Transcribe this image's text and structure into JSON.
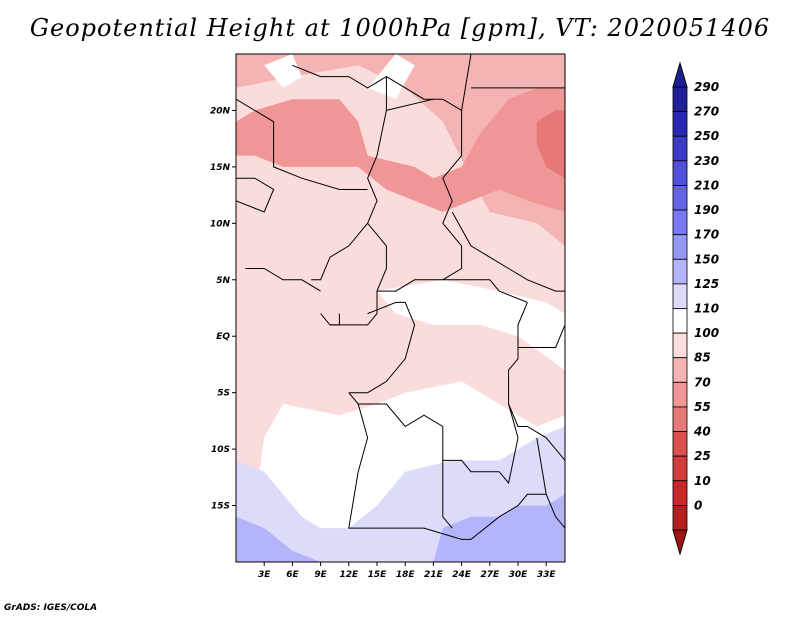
{
  "title": "Geopotential Height at 1000hPa [gpm], VT: 2020051406",
  "credit": "GrADS: IGES/COLA",
  "map": {
    "lat_range": [
      -20,
      25
    ],
    "lon_range": [
      0,
      35
    ],
    "lat_ticks": [
      {
        "value": 20,
        "label": "20N"
      },
      {
        "value": 15,
        "label": "15N"
      },
      {
        "value": 10,
        "label": "10N"
      },
      {
        "value": 5,
        "label": "5N"
      },
      {
        "value": 0,
        "label": "EQ"
      },
      {
        "value": -5,
        "label": "5S"
      },
      {
        "value": -10,
        "label": "10S"
      },
      {
        "value": -15,
        "label": "15S"
      }
    ],
    "lon_ticks": [
      {
        "value": 3,
        "label": "3E"
      },
      {
        "value": 6,
        "label": "6E"
      },
      {
        "value": 9,
        "label": "9E"
      },
      {
        "value": 12,
        "label": "12E"
      },
      {
        "value": 15,
        "label": "15E"
      },
      {
        "value": 18,
        "label": "18E"
      },
      {
        "value": 21,
        "label": "21E"
      },
      {
        "value": 24,
        "label": "24E"
      },
      {
        "value": 27,
        "label": "27E"
      },
      {
        "value": 30,
        "label": "30E"
      },
      {
        "value": 33,
        "label": "33E"
      }
    ]
  },
  "colorbar": {
    "levels": [
      {
        "label": "290",
        "color": "#1e1e96"
      },
      {
        "label": "270",
        "color": "#2828b4"
      },
      {
        "label": "250",
        "color": "#3c3cc8"
      },
      {
        "label": "230",
        "color": "#5050dc"
      },
      {
        "label": "210",
        "color": "#6464e6"
      },
      {
        "label": "190",
        "color": "#7878f0"
      },
      {
        "label": "170",
        "color": "#9696f5"
      },
      {
        "label": "150",
        "color": "#b4b4fa"
      },
      {
        "label": "125",
        "color": "#dcdcfa"
      },
      {
        "label": "110",
        "color": "#ffffff"
      },
      {
        "label": "100",
        "color": "#fadcdc"
      },
      {
        "label": "85",
        "color": "#f5b4b4"
      },
      {
        "label": "70",
        "color": "#f09696"
      },
      {
        "label": "55",
        "color": "#e67878"
      },
      {
        "label": "40",
        "color": "#dc5050"
      },
      {
        "label": "25",
        "color": "#d23c3c"
      },
      {
        "label": "10",
        "color": "#c82828"
      },
      {
        "label": "0",
        "color": "#b41e1e"
      }
    ],
    "top_cap_color": "#1e1e96",
    "bottom_cap_color": "#a01414"
  },
  "field": {
    "base_color": "#fadcdc",
    "regions": [
      {
        "name": "sahel-band",
        "color": "#f5b4b4",
        "polygon": [
          [
            0,
            22
          ],
          [
            6,
            23
          ],
          [
            13,
            24
          ],
          [
            18,
            22
          ],
          [
            22,
            19
          ],
          [
            25,
            14
          ],
          [
            27,
            11
          ],
          [
            32,
            10
          ],
          [
            35,
            8
          ],
          [
            35,
            25
          ],
          [
            0,
            25
          ]
        ]
      },
      {
        "name": "chad-sudan-max",
        "color": "#f09696",
        "polygon": [
          [
            2,
            20
          ],
          [
            6,
            21
          ],
          [
            11,
            21
          ],
          [
            13,
            19
          ],
          [
            14,
            16
          ],
          [
            19,
            15
          ],
          [
            21,
            14
          ],
          [
            24,
            15
          ],
          [
            26,
            18
          ],
          [
            29,
            21
          ],
          [
            32,
            22
          ],
          [
            35,
            22
          ],
          [
            35,
            11
          ],
          [
            31,
            12
          ],
          [
            28,
            13
          ],
          [
            25,
            12
          ],
          [
            22,
            11
          ],
          [
            19,
            12
          ],
          [
            16,
            13
          ],
          [
            13,
            15
          ],
          [
            9,
            15
          ],
          [
            5,
            15
          ],
          [
            2,
            16
          ],
          [
            0,
            16
          ],
          [
            0,
            19
          ]
        ]
      },
      {
        "name": "east-max",
        "color": "#e67878",
        "polygon": [
          [
            32,
            19
          ],
          [
            34,
            20
          ],
          [
            35,
            20
          ],
          [
            35,
            14
          ],
          [
            33,
            15
          ],
          [
            32,
            17
          ]
        ]
      },
      {
        "name": "northwest-white",
        "color": "#ffffff",
        "polygon": [
          [
            3,
            24
          ],
          [
            6,
            25
          ],
          [
            7,
            23
          ],
          [
            5,
            22
          ]
        ]
      },
      {
        "name": "north-white-2",
        "color": "#ffffff",
        "polygon": [
          [
            14,
            22
          ],
          [
            17,
            25
          ],
          [
            19,
            24
          ],
          [
            17,
            21
          ]
        ]
      },
      {
        "name": "congo-white",
        "color": "#ffffff",
        "polygon": [
          [
            15,
            4
          ],
          [
            22,
            5
          ],
          [
            28,
            4
          ],
          [
            33,
            3
          ],
          [
            35,
            2
          ],
          [
            35,
            -7
          ],
          [
            32,
            -8
          ],
          [
            28,
            -6
          ],
          [
            24,
            -4
          ],
          [
            18,
            -5
          ],
          [
            15,
            -6
          ],
          [
            11,
            -7
          ],
          [
            5,
            -6
          ],
          [
            3,
            -9
          ],
          [
            2,
            -15
          ],
          [
            0,
            -16
          ],
          [
            0,
            -20
          ],
          [
            35,
            -20
          ],
          [
            35,
            -3
          ],
          [
            30,
            0
          ],
          [
            26,
            1
          ],
          [
            21,
            1
          ],
          [
            17,
            2
          ]
        ]
      },
      {
        "name": "southwest-blue",
        "color": "#dcdcfa",
        "polygon": [
          [
            0,
            -11
          ],
          [
            3,
            -12
          ],
          [
            5,
            -14
          ],
          [
            7,
            -16
          ],
          [
            9,
            -17
          ],
          [
            12,
            -17
          ],
          [
            15,
            -15
          ],
          [
            18,
            -12
          ],
          [
            23,
            -11
          ],
          [
            28,
            -11
          ],
          [
            32,
            -9
          ],
          [
            35,
            -8
          ],
          [
            35,
            -20
          ],
          [
            0,
            -20
          ]
        ]
      },
      {
        "name": "south-blue-2",
        "color": "#b4b4fa",
        "polygon": [
          [
            0,
            -16
          ],
          [
            3,
            -17
          ],
          [
            6,
            -19
          ],
          [
            9,
            -20
          ],
          [
            0,
            -20
          ]
        ]
      },
      {
        "name": "southeast-blue-2",
        "color": "#b4b4fa",
        "polygon": [
          [
            21,
            -20
          ],
          [
            22,
            -17
          ],
          [
            25,
            -16
          ],
          [
            28,
            -16
          ],
          [
            30,
            -15
          ],
          [
            33,
            -15
          ],
          [
            35,
            -14
          ],
          [
            35,
            -20
          ]
        ]
      }
    ]
  },
  "boundaries": [
    [
      [
        0,
        12
      ],
      [
        3,
        11
      ],
      [
        4,
        13
      ],
      [
        2,
        14
      ],
      [
        0,
        14
      ]
    ],
    [
      [
        0,
        21
      ],
      [
        4,
        19
      ],
      [
        4,
        15
      ],
      [
        7,
        14
      ],
      [
        11,
        13
      ],
      [
        12,
        13
      ],
      [
        14,
        13
      ]
    ],
    [
      [
        6,
        24
      ],
      [
        9,
        23
      ],
      [
        12,
        23
      ],
      [
        14,
        22
      ],
      [
        16,
        23
      ],
      [
        16,
        20
      ],
      [
        15,
        16
      ],
      [
        14,
        14
      ],
      [
        15,
        12
      ],
      [
        14,
        10
      ],
      [
        16,
        8
      ],
      [
        16,
        6
      ],
      [
        15,
        4
      ],
      [
        15,
        2
      ],
      [
        14,
        1
      ],
      [
        13,
        1
      ],
      [
        10,
        1
      ]
    ],
    [
      [
        16,
        23
      ],
      [
        20,
        21
      ],
      [
        22,
        21
      ],
      [
        24,
        20
      ],
      [
        24,
        16
      ],
      [
        22,
        14
      ],
      [
        23,
        12
      ],
      [
        22,
        10
      ],
      [
        24,
        8
      ],
      [
        24,
        6
      ],
      [
        22,
        5
      ]
    ],
    [
      [
        16,
        20
      ],
      [
        21,
        21
      ]
    ],
    [
      [
        24,
        20
      ],
      [
        25,
        25
      ]
    ],
    [
      [
        25,
        22
      ],
      [
        35,
        22
      ]
    ],
    [
      [
        23,
        11
      ],
      [
        25,
        8
      ],
      [
        27,
        7
      ],
      [
        29,
        6
      ],
      [
        31,
        5
      ],
      [
        34,
        4
      ],
      [
        35,
        4
      ]
    ],
    [
      [
        14,
        10
      ],
      [
        12,
        8
      ],
      [
        10,
        7
      ],
      [
        9,
        5
      ],
      [
        8,
        5
      ]
    ],
    [
      [
        15,
        4
      ],
      [
        17,
        4
      ],
      [
        19,
        5
      ],
      [
        22,
        5
      ],
      [
        24,
        5
      ],
      [
        27,
        5
      ],
      [
        28,
        4
      ],
      [
        31,
        3
      ]
    ],
    [
      [
        14,
        2
      ],
      [
        17,
        3
      ],
      [
        18,
        3
      ],
      [
        19,
        1
      ],
      [
        18,
        -2
      ],
      [
        16,
        -4
      ],
      [
        14,
        -5
      ],
      [
        12,
        -5
      ]
    ],
    [
      [
        12,
        -5
      ],
      [
        13,
        -6
      ],
      [
        16,
        -6
      ],
      [
        18,
        -8
      ],
      [
        20,
        -7
      ],
      [
        22,
        -8
      ],
      [
        22,
        -11
      ],
      [
        24,
        -11
      ],
      [
        25,
        -12
      ],
      [
        28,
        -12
      ],
      [
        29,
        -13
      ],
      [
        30,
        -9
      ],
      [
        29,
        -6
      ],
      [
        29,
        -3
      ],
      [
        30,
        -2
      ],
      [
        30,
        1
      ],
      [
        31,
        3
      ]
    ],
    [
      [
        13,
        -6
      ],
      [
        14,
        -9
      ],
      [
        13,
        -12
      ],
      [
        12,
        -17
      ],
      [
        14,
        -17
      ],
      [
        18,
        -17
      ],
      [
        20,
        -17
      ],
      [
        24,
        -18
      ],
      [
        25,
        -18
      ]
    ],
    [
      [
        22,
        -11
      ],
      [
        22,
        -13
      ],
      [
        22,
        -16
      ],
      [
        23,
        -17
      ]
    ],
    [
      [
        25,
        -18
      ],
      [
        28,
        -16
      ],
      [
        30,
        -15
      ],
      [
        31,
        -14
      ],
      [
        33,
        -14
      ],
      [
        34,
        -16
      ],
      [
        35,
        -17
      ]
    ],
    [
      [
        29,
        -6
      ],
      [
        30,
        -8
      ],
      [
        31,
        -8
      ],
      [
        33,
        -9
      ],
      [
        34,
        -10
      ],
      [
        35,
        -11
      ]
    ],
    [
      [
        30,
        -1
      ],
      [
        34,
        -1
      ],
      [
        35,
        1
      ]
    ],
    [
      [
        32,
        -9
      ],
      [
        33,
        -14
      ]
    ],
    [
      [
        1,
        6
      ],
      [
        3,
        6
      ],
      [
        5,
        5
      ],
      [
        7,
        5
      ],
      [
        9,
        4
      ]
    ],
    [
      [
        9,
        2
      ],
      [
        10,
        1
      ],
      [
        11,
        1
      ],
      [
        11,
        2
      ]
    ]
  ]
}
